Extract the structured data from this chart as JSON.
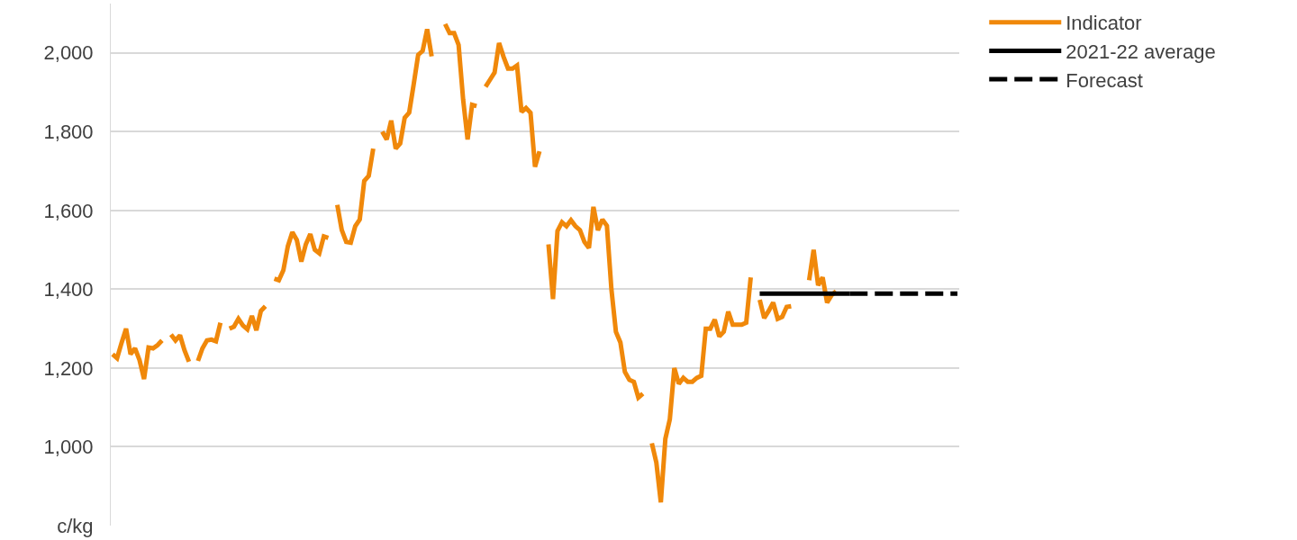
{
  "chart_data": {
    "type": "line",
    "categories": [
      null,
      null,
      null,
      null,
      null,
      null,
      null,
      null,
      null,
      null,
      null,
      null,
      null,
      null,
      null,
      null,
      null,
      null,
      null,
      null,
      null,
      null,
      null,
      null,
      null,
      null,
      null,
      null,
      null,
      null,
      null,
      null,
      null,
      null,
      null,
      null,
      null,
      null,
      null,
      null,
      null,
      null,
      null,
      null,
      null,
      null,
      null,
      null,
      null,
      null,
      null,
      null,
      null,
      null,
      null,
      null,
      null,
      null,
      null,
      null,
      null,
      null,
      null,
      null,
      null,
      null,
      null,
      null,
      null,
      null,
      null,
      null,
      null,
      null,
      null,
      null,
      null,
      null,
      null,
      null,
      null,
      null,
      null,
      null,
      null,
      null,
      null,
      null,
      null,
      null,
      null,
      null,
      null,
      null,
      null,
      null,
      null,
      null,
      null,
      null,
      null,
      null,
      null,
      null,
      null,
      null,
      null,
      null,
      null,
      null,
      null,
      null,
      null,
      null,
      null,
      null,
      null,
      null,
      null,
      null,
      null,
      null,
      null,
      null,
      null,
      null,
      null,
      null,
      null,
      null,
      null,
      null,
      null,
      null,
      null,
      null,
      null,
      null,
      null,
      null,
      null,
      null,
      null,
      null,
      null,
      null,
      null,
      null,
      null,
      null,
      null,
      null,
      null,
      null,
      null,
      null,
      null,
      null,
      null,
      null,
      null,
      null,
      null,
      null,
      null,
      null,
      null,
      null,
      null,
      null,
      null,
      null,
      null,
      null,
      null,
      null,
      null,
      null,
      null,
      null,
      null,
      null,
      null,
      null,
      null,
      null,
      null,
      null,
      null
    ],
    "series": [
      {
        "name": "Indicator",
        "color": "#f0880a",
        "line_style": "solid",
        "values": [
          1235,
          1225,
          1264,
          1300,
          1235,
          1250,
          1220,
          1172,
          1252,
          1250,
          1258,
          1270,
          null,
          1285,
          1270,
          1283,
          1245,
          1216,
          null,
          1218,
          1250,
          1270,
          1272,
          1268,
          1315,
          null,
          1300,
          1305,
          1325,
          1308,
          1298,
          1332,
          1296,
          1345,
          1357,
          null,
          1427,
          1423,
          1448,
          1509,
          1545,
          1525,
          1470,
          1514,
          1540,
          1500,
          1491,
          1534,
          1530,
          null,
          1614,
          1550,
          1520,
          1518,
          1560,
          1577,
          1675,
          1688,
          1757,
          null,
          1800,
          1780,
          1828,
          1757,
          1770,
          1835,
          1848,
          1920,
          1995,
          2005,
          2060,
          1991,
          null,
          null,
          2073,
          2050,
          2050,
          2020,
          1882,
          1780,
          1868,
          1865,
          null,
          1914,
          1932,
          1950,
          2025,
          1990,
          1960,
          1960,
          1968,
          1850,
          1860,
          1848,
          1711,
          1750,
          null,
          1514,
          1375,
          1548,
          1570,
          1560,
          1575,
          1560,
          1550,
          1520,
          1505,
          1609,
          1550,
          1577,
          1561,
          1400,
          1292,
          1265,
          1190,
          1170,
          1165,
          1125,
          1135,
          null,
          1009,
          960,
          859,
          1020,
          1070,
          1200,
          1160,
          1175,
          1165,
          1165,
          1175,
          1180,
          1300,
          1300,
          1323,
          1280,
          1292,
          1343,
          1310,
          1310,
          1310,
          1315,
          1430,
          null,
          1373,
          1327,
          1345,
          1366,
          1325,
          1330,
          1355,
          1357,
          null,
          null,
          null,
          1423,
          1500,
          1410,
          1430,
          1366,
          1385,
          1395,
          null,
          null,
          null,
          null,
          null,
          null,
          null,
          null,
          null,
          null,
          null,
          null,
          null,
          null,
          null,
          null,
          null,
          null,
          null,
          null,
          null,
          null,
          null,
          null,
          null,
          null,
          null
        ]
      },
      {
        "name": "2021-22 average",
        "color": "#000000",
        "line_style": "solid",
        "values": [
          null,
          null,
          null,
          null,
          null,
          null,
          null,
          null,
          null,
          null,
          null,
          null,
          null,
          null,
          null,
          null,
          null,
          null,
          null,
          null,
          null,
          null,
          null,
          null,
          null,
          null,
          null,
          null,
          null,
          null,
          null,
          null,
          null,
          null,
          null,
          null,
          null,
          null,
          null,
          null,
          null,
          null,
          null,
          null,
          null,
          null,
          null,
          null,
          null,
          null,
          null,
          null,
          null,
          null,
          null,
          null,
          null,
          null,
          null,
          null,
          null,
          null,
          null,
          null,
          null,
          null,
          null,
          null,
          null,
          null,
          null,
          null,
          null,
          null,
          null,
          null,
          null,
          null,
          null,
          null,
          null,
          null,
          null,
          null,
          null,
          null,
          null,
          null,
          null,
          null,
          null,
          null,
          null,
          null,
          null,
          null,
          null,
          null,
          null,
          null,
          null,
          null,
          null,
          null,
          null,
          null,
          null,
          null,
          null,
          null,
          null,
          null,
          null,
          null,
          null,
          null,
          null,
          null,
          null,
          null,
          null,
          null,
          null,
          null,
          null,
          null,
          null,
          null,
          null,
          null,
          null,
          null,
          null,
          null,
          null,
          null,
          null,
          null,
          null,
          null,
          null,
          null,
          null,
          null,
          1389,
          1389,
          1389,
          1389,
          1389,
          1389,
          1389,
          1389,
          1389,
          1389,
          1389,
          1389,
          1389,
          1389,
          1389,
          1389,
          1389,
          1389,
          1389,
          1389,
          1389,
          null,
          null,
          null,
          null,
          null,
          null,
          null,
          null,
          null,
          null,
          null,
          null,
          null,
          null,
          null,
          null,
          null,
          null,
          null,
          null,
          null,
          null,
          null,
          null
        ]
      },
      {
        "name": "Forecast",
        "color": "#000000",
        "line_style": "dashed",
        "values": [
          null,
          null,
          null,
          null,
          null,
          null,
          null,
          null,
          null,
          null,
          null,
          null,
          null,
          null,
          null,
          null,
          null,
          null,
          null,
          null,
          null,
          null,
          null,
          null,
          null,
          null,
          null,
          null,
          null,
          null,
          null,
          null,
          null,
          null,
          null,
          null,
          null,
          null,
          null,
          null,
          null,
          null,
          null,
          null,
          null,
          null,
          null,
          null,
          null,
          null,
          null,
          null,
          null,
          null,
          null,
          null,
          null,
          null,
          null,
          null,
          null,
          null,
          null,
          null,
          null,
          null,
          null,
          null,
          null,
          null,
          null,
          null,
          null,
          null,
          null,
          null,
          null,
          null,
          null,
          null,
          null,
          null,
          null,
          null,
          null,
          null,
          null,
          null,
          null,
          null,
          null,
          null,
          null,
          null,
          null,
          null,
          null,
          null,
          null,
          null,
          null,
          null,
          null,
          null,
          null,
          null,
          null,
          null,
          null,
          null,
          null,
          null,
          null,
          null,
          null,
          null,
          null,
          null,
          null,
          null,
          null,
          null,
          null,
          null,
          null,
          null,
          null,
          null,
          null,
          null,
          null,
          null,
          null,
          null,
          null,
          null,
          null,
          null,
          null,
          null,
          null,
          null,
          null,
          null,
          null,
          null,
          null,
          null,
          null,
          null,
          null,
          null,
          null,
          null,
          null,
          null,
          null,
          null,
          null,
          null,
          null,
          null,
          null,
          null,
          1389,
          1389,
          1389,
          1389,
          1389,
          1389,
          1389,
          1389,
          1389,
          1389,
          1389,
          1389,
          1389,
          1389,
          1389,
          1389,
          1389,
          1389,
          1389,
          1389,
          1389,
          1389,
          1389,
          1389,
          1389
        ]
      }
    ],
    "ylim": [
      800,
      2125
    ],
    "yticks": [
      {
        "value": 800,
        "label": "c/kg"
      },
      {
        "value": 1000,
        "label": "1,000"
      },
      {
        "value": 1200,
        "label": "1,200"
      },
      {
        "value": 1400,
        "label": "1,400"
      },
      {
        "value": 1600,
        "label": "1,600"
      },
      {
        "value": 1800,
        "label": "1,800"
      },
      {
        "value": 2000,
        "label": "2,000"
      }
    ],
    "grid": "y",
    "legend": "top right",
    "tick_labels": "y",
    "marker": "none"
  }
}
